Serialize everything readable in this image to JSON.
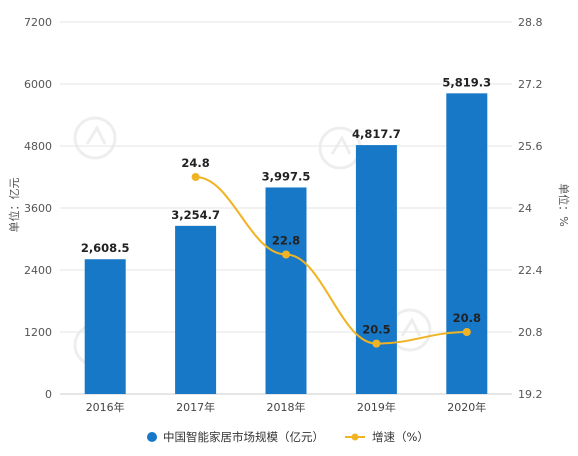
{
  "chart_data": {
    "type": "bar",
    "categories": [
      "2016年",
      "2017年",
      "2018年",
      "2019年",
      "2020年"
    ],
    "series": [
      {
        "name": "中国智能家居市场规模（亿元）",
        "type": "bar",
        "axis": "left",
        "color": "#1878c8",
        "values": [
          2608.5,
          3254.7,
          3997.5,
          4817.7,
          5819.3
        ],
        "labels": [
          "2,608.5",
          "3,254.7",
          "3,997.5",
          "4,817.7",
          "5,819.3"
        ]
      },
      {
        "name": "增速（%）",
        "type": "line",
        "axis": "right",
        "color": "#f0b323",
        "values": [
          null,
          24.8,
          22.8,
          20.5,
          20.8
        ],
        "labels": [
          "",
          "24.8",
          "22.8",
          "20.5",
          "20.8"
        ]
      }
    ],
    "ylabel": "单位：亿元",
    "y2label": "单位：%",
    "ylim": [
      0,
      7200
    ],
    "y2lim": [
      19.2,
      28.8
    ],
    "yticks": [
      "0",
      "1200",
      "2400",
      "3600",
      "4800",
      "6000",
      "7200"
    ],
    "y2ticks": [
      "19.2",
      "20.8",
      "22.4",
      "24",
      "25.6",
      "27.2",
      "28.8"
    ],
    "grid": true,
    "legend": "bottom"
  }
}
